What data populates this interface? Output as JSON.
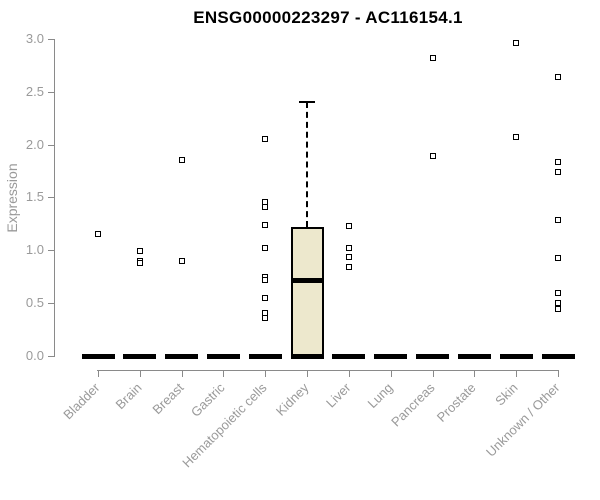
{
  "chart_data": {
    "type": "boxplot",
    "title": "ENSG00000223297 - AC116154.1",
    "ylabel": "Expression",
    "xlabel": "",
    "ylim": [
      0.0,
      3.0
    ],
    "yticks": [
      0.0,
      0.5,
      1.0,
      1.5,
      2.0,
      2.5,
      3.0
    ],
    "ytick_labels": [
      "0.0",
      "0.5",
      "1.0",
      "1.5",
      "2.0",
      "2.5",
      "3.0"
    ],
    "grid": false,
    "legend": false,
    "point_marker": "open-square",
    "colors": {
      "box_fill": "#EDE8CD",
      "box_border": "#000000",
      "axis": "#8A8A8A",
      "text": "#9A9A9A",
      "title": "#000000",
      "background": "#FFFFFF"
    },
    "groups": [
      {
        "label": "Bladder",
        "box": {
          "low": 0,
          "q1": 0,
          "median": 0,
          "q3": 0,
          "high": 0
        },
        "outliers": [
          1.15
        ]
      },
      {
        "label": "Brain",
        "box": {
          "low": 0,
          "q1": 0,
          "median": 0,
          "q3": 0,
          "high": 0
        },
        "outliers": [
          0.99,
          0.9,
          0.88
        ]
      },
      {
        "label": "Breast",
        "box": {
          "low": 0,
          "q1": 0,
          "median": 0,
          "q3": 0,
          "high": 0
        },
        "outliers": [
          1.85,
          0.9
        ]
      },
      {
        "label": "Gastric",
        "box": {
          "low": 0,
          "q1": 0,
          "median": 0,
          "q3": 0,
          "high": 0
        },
        "outliers": []
      },
      {
        "label": "Hematopoietic cells",
        "box": {
          "low": 0,
          "q1": 0,
          "median": 0,
          "q3": 0,
          "high": 0
        },
        "outliers": [
          2.05,
          1.46,
          1.41,
          1.24,
          1.02,
          0.75,
          0.72,
          0.55,
          0.41,
          0.36
        ]
      },
      {
        "label": "Kidney",
        "box": {
          "low": 0,
          "q1": 0,
          "median": 0.71,
          "q3": 1.22,
          "high": 2.4
        },
        "outliers": []
      },
      {
        "label": "Liver",
        "box": {
          "low": 0,
          "q1": 0,
          "median": 0,
          "q3": 0,
          "high": 0
        },
        "outliers": [
          1.23,
          1.02,
          0.94,
          0.84
        ]
      },
      {
        "label": "Lung",
        "box": {
          "low": 0,
          "q1": 0,
          "median": 0,
          "q3": 0,
          "high": 0
        },
        "outliers": []
      },
      {
        "label": "Pancreas",
        "box": {
          "low": 0,
          "q1": 0,
          "median": 0,
          "q3": 0,
          "high": 0
        },
        "outliers": [
          2.82,
          1.89
        ]
      },
      {
        "label": "Prostate",
        "box": {
          "low": 0,
          "q1": 0,
          "median": 0,
          "q3": 0,
          "high": 0
        },
        "outliers": []
      },
      {
        "label": "Skin",
        "box": {
          "low": 0,
          "q1": 0,
          "median": 0,
          "q3": 0,
          "high": 0
        },
        "outliers": [
          2.96,
          2.07
        ]
      },
      {
        "label": "Unknown / Other",
        "box": {
          "low": 0,
          "q1": 0,
          "median": 0,
          "q3": 0,
          "high": 0
        },
        "outliers": [
          2.64,
          1.84,
          1.74,
          1.29,
          0.93,
          0.6,
          0.5,
          0.44
        ]
      }
    ]
  }
}
